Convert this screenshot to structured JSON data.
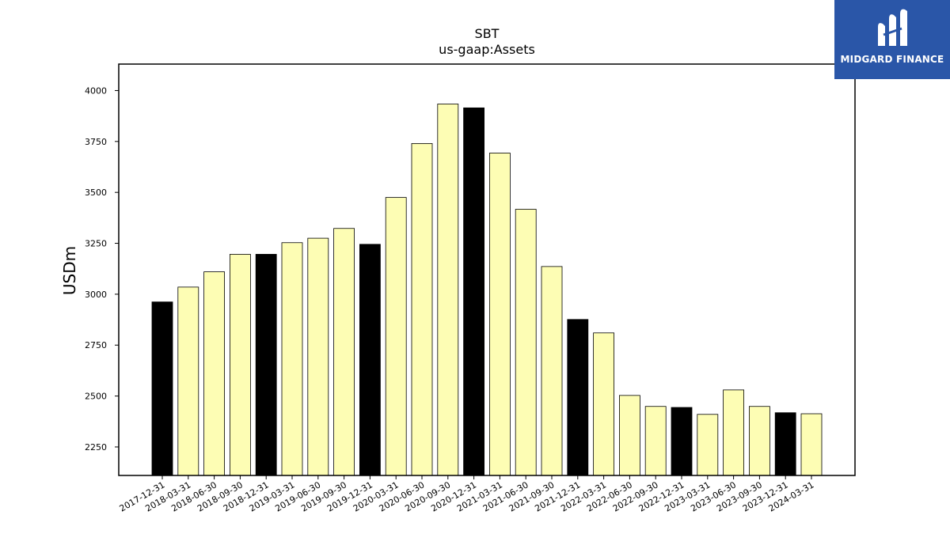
{
  "chart_data": {
    "type": "bar",
    "title": "SBT",
    "subtitle": "us-gaap:Assets",
    "ylabel": "USDm",
    "xlabel": "",
    "ylim": [
      2110,
      4130
    ],
    "yticks": [
      2250,
      2500,
      2750,
      3000,
      3250,
      3500,
      3750,
      4000
    ],
    "grid": false,
    "categories": [
      "2017-12-31",
      "2018-03-31",
      "2018-06-30",
      "2018-09-30",
      "2018-12-31",
      "2019-03-31",
      "2019-06-30",
      "2019-09-30",
      "2019-12-31",
      "2020-03-31",
      "2020-06-30",
      "2020-09-30",
      "2020-12-31",
      "2021-03-31",
      "2021-06-30",
      "2021-09-30",
      "2021-12-31",
      "2022-03-31",
      "2022-06-30",
      "2022-09-30",
      "2022-12-31",
      "2023-03-31",
      "2023-06-30",
      "2023-09-30",
      "2023-12-31",
      "2024-03-31"
    ],
    "values": [
      2962,
      3035,
      3110,
      3196,
      3196,
      3253,
      3275,
      3323,
      3245,
      3475,
      3740,
      3934,
      3915,
      3693,
      3417,
      3136,
      2876,
      2810,
      2503,
      2449,
      2444,
      2410,
      2530,
      2449,
      2418,
      2413
    ],
    "colors": {
      "year_end": "#000000",
      "quarter": "#fdfdb4",
      "edge": "#000000"
    }
  },
  "logo": {
    "text": "MIDGARD FINANCE",
    "background": "#2a56a8"
  }
}
